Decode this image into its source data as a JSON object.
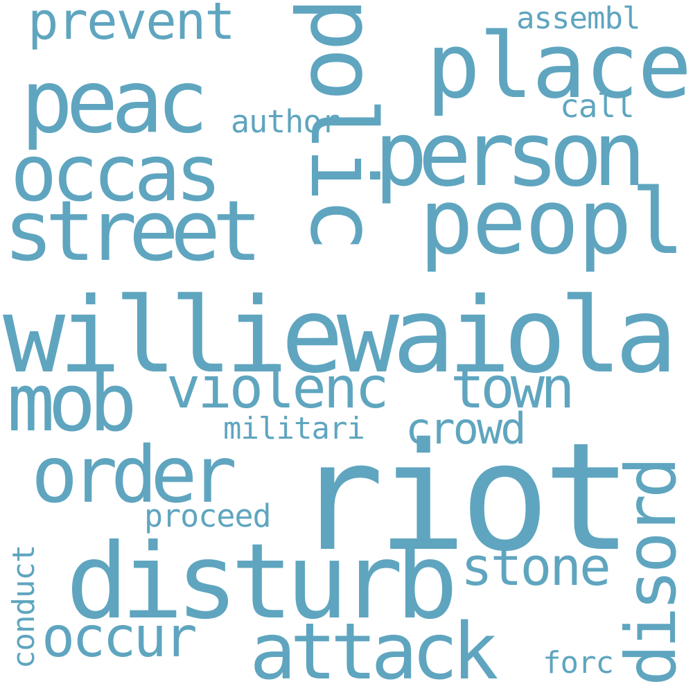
{
  "colors": {
    "word": "#5fa5bf",
    "background": "#ffffff"
  },
  "words": {
    "williewaiola": "williewaiola",
    "riot": "riot",
    "disturb": "disturb",
    "person": "person",
    "polic": "polic",
    "peopl": "peopl",
    "place": "place",
    "peac": "peac",
    "street": "street",
    "occas": "occas",
    "mob": "mob",
    "order": "order",
    "attack": "attack",
    "violenc": "violenc",
    "town": "town",
    "disord": "disord",
    "stone": "stone",
    "occur": "occur",
    "prevent": "prevent",
    "crowd": "crowd",
    "militari": "militari",
    "proceed": "proceed",
    "author": "author",
    "assembl": "assembl",
    "call": "call",
    "conduct": "conduct",
    "forc": "forc"
  }
}
